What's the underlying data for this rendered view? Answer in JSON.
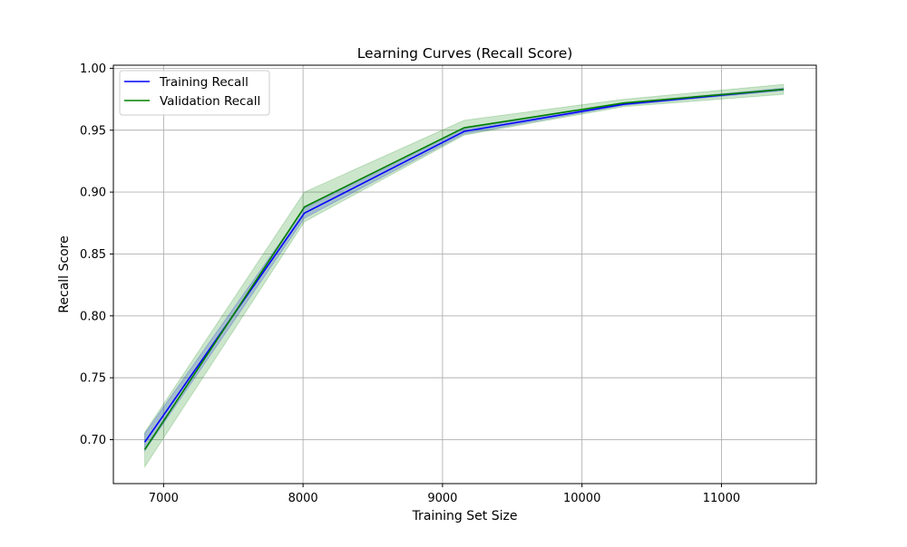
{
  "chart_data": {
    "type": "line",
    "title": "Learning Curves (Recall Score)",
    "xlabel": "Training Set Size",
    "ylabel": "Recall Score",
    "xlim": [
      6640,
      11680
    ],
    "ylim": [
      0.6645,
      1.0025
    ],
    "xticks": [
      7000,
      8000,
      9000,
      10000,
      11000
    ],
    "yticks": [
      0.7,
      0.75,
      0.8,
      0.85,
      0.9,
      0.95,
      1.0
    ],
    "xtick_labels": [
      "7000",
      "8000",
      "9000",
      "10000",
      "11000"
    ],
    "ytick_labels": [
      "0.70",
      "0.75",
      "0.80",
      "0.85",
      "0.90",
      "0.95",
      "1.00"
    ],
    "grid": true,
    "legend_position": "upper-left",
    "x": [
      6865,
      8010,
      9155,
      10300,
      11445
    ],
    "series": [
      {
        "name": "Training Recall",
        "color": "#0000ff",
        "values": [
          0.698,
          0.883,
          0.949,
          0.971,
          0.983
        ],
        "lower": [
          0.691,
          0.879,
          0.947,
          0.97,
          0.982
        ],
        "upper": [
          0.705,
          0.887,
          0.951,
          0.972,
          0.984
        ]
      },
      {
        "name": "Validation Recall",
        "color": "#008000",
        "values": [
          0.692,
          0.888,
          0.952,
          0.972,
          0.983
        ],
        "lower": [
          0.678,
          0.876,
          0.946,
          0.969,
          0.979
        ],
        "upper": [
          0.706,
          0.9,
          0.958,
          0.975,
          0.987
        ]
      }
    ]
  }
}
